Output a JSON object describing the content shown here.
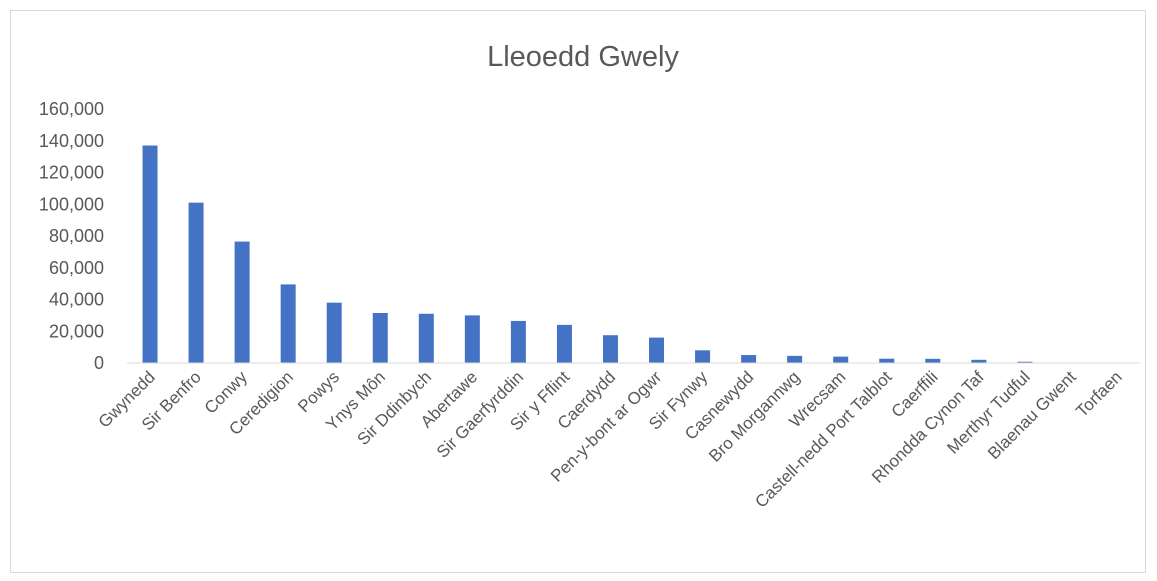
{
  "chart_data": {
    "type": "bar",
    "title": "Lleoedd Gwely",
    "xlabel": "",
    "ylabel": "",
    "ylim": [
      0,
      160000
    ],
    "yticks": [
      0,
      20000,
      40000,
      60000,
      80000,
      100000,
      120000,
      140000,
      160000
    ],
    "ytick_labels": [
      "0",
      "20,000",
      "40,000",
      "60,000",
      "80,000",
      "100,000",
      "120,000",
      "140,000",
      "160,000"
    ],
    "grid": false,
    "legend": "none",
    "bar_color": "#4472c4",
    "categories": [
      "Gwynedd",
      "Sir Benfro",
      "Conwy",
      "Ceredigion",
      "Powys",
      "Ynys Môn",
      "Sir Ddinbych",
      "Abertawe",
      "Sir Gaerfyrddin",
      "Sir y Fflint",
      "Caerdydd",
      "Pen-y-bont ar Ogwr",
      "Sir Fynwy",
      "Casnewydd",
      "Bro Morgannwg",
      "Wrecsam",
      "Castell-nedd Port Talblot",
      "Caerffili",
      "Rhondda Cynon Taf",
      "Merthyr Tudful",
      "Blaenau Gwent",
      "Torfaen"
    ],
    "values": [
      137000,
      101000,
      76500,
      49500,
      38000,
      31500,
      31000,
      30000,
      26500,
      24000,
      17500,
      16000,
      8000,
      5000,
      4500,
      4000,
      2700,
      2600,
      2000,
      800,
      300,
      200
    ]
  }
}
